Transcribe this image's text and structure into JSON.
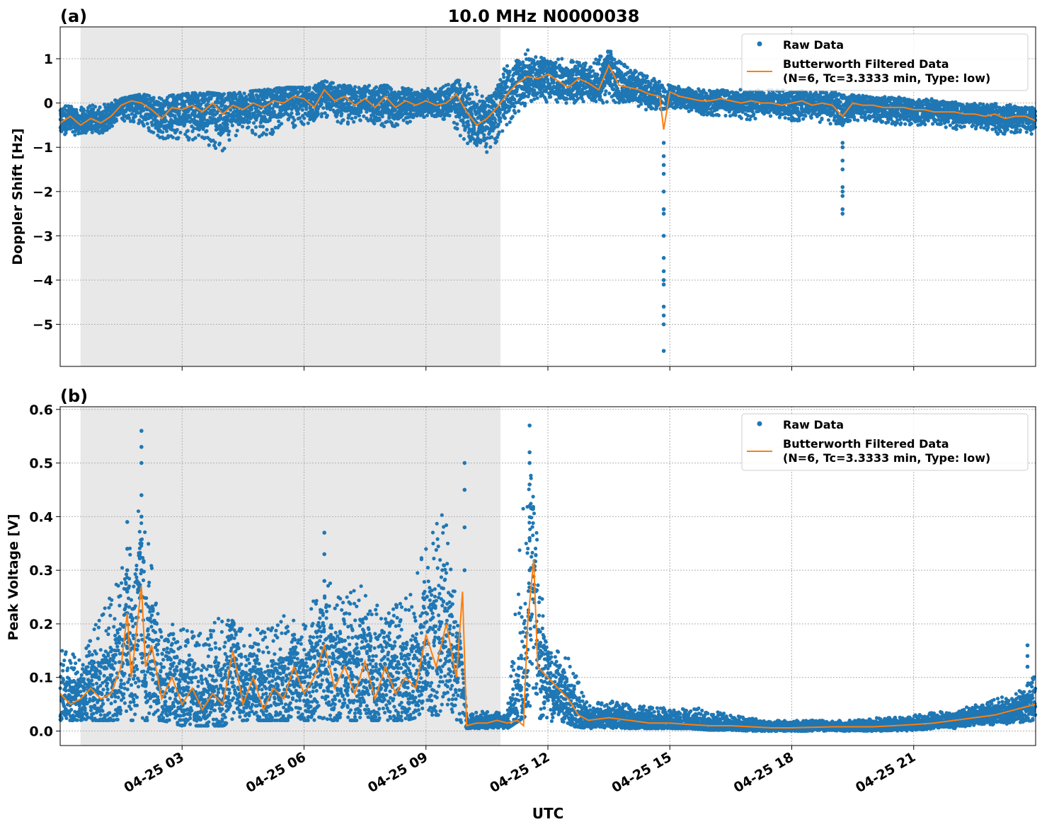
{
  "figure": {
    "title": "10.0 MHz N0000038",
    "xlabel": "UTC",
    "shade_interval": [
      "00:30",
      "10:50"
    ],
    "x_ticks": [
      "04-25 03",
      "04-25 06",
      "04-25 09",
      "04-25 12",
      "04-25 15",
      "04-25 18",
      "04-25 21"
    ],
    "x_tick_hours": [
      3,
      6,
      9,
      12,
      15,
      18,
      21
    ],
    "x_range_hours": [
      0,
      24
    ],
    "colors": {
      "raw": "#1f77b4",
      "filtered": "#ff7f0e",
      "shade": "#e8e8e8",
      "grid": "#b0b0b0"
    }
  },
  "chart_data": [
    {
      "type": "line",
      "panel_label": "(a)",
      "title": "10.0 MHz N0000038",
      "xlabel": "",
      "ylabel": "Doppler Shift [Hz]",
      "ylim": [
        -5.95,
        1.72
      ],
      "y_ticks": [
        1,
        0,
        -1,
        -2,
        -3,
        -4,
        -5
      ],
      "y_tick_labels": [
        "1",
        "0",
        "−1",
        "−2",
        "−3",
        "−4",
        "−5"
      ],
      "grid": true,
      "legend_position": "top-right",
      "series": [
        {
          "name": "Raw Data",
          "style": "scatter",
          "envelope": {
            "x_hours": [
              0.0,
              0.5,
              1.0,
              1.5,
              2.0,
              2.5,
              3.0,
              3.5,
              4.0,
              4.5,
              5.0,
              5.5,
              6.0,
              6.5,
              7.0,
              7.5,
              8.0,
              8.5,
              9.0,
              9.5,
              10.0,
              10.5,
              11.0,
              11.5,
              12.0,
              12.5,
              13.0,
              13.5,
              14.0,
              14.5,
              15.0,
              15.5,
              16.0,
              16.5,
              17.0,
              17.5,
              18.0,
              18.5,
              19.0,
              19.5,
              20.0,
              20.5,
              21.0,
              21.5,
              22.0,
              22.5,
              23.0,
              23.5,
              24.0
            ],
            "high": [
              0.0,
              -0.1,
              0.0,
              0.1,
              0.2,
              0.15,
              0.2,
              0.25,
              0.2,
              0.25,
              0.3,
              0.35,
              0.35,
              0.5,
              0.4,
              0.4,
              0.4,
              0.35,
              0.35,
              0.4,
              0.6,
              0.1,
              0.9,
              1.2,
              1.0,
              1.0,
              0.9,
              1.2,
              0.8,
              0.6,
              0.4,
              0.35,
              0.3,
              0.3,
              0.3,
              0.3,
              0.3,
              0.25,
              0.25,
              0.2,
              0.15,
              0.15,
              0.1,
              0.1,
              0.05,
              0.0,
              0.0,
              -0.05,
              -0.1
            ],
            "low": [
              -0.8,
              -0.7,
              -0.7,
              -0.4,
              -0.5,
              -0.9,
              -0.8,
              -0.9,
              -1.1,
              -0.6,
              -0.8,
              -0.6,
              -0.6,
              -0.3,
              -0.5,
              -0.4,
              -0.6,
              -0.5,
              -0.3,
              -0.4,
              -0.9,
              -1.2,
              -0.5,
              0.0,
              0.0,
              0.0,
              0.0,
              0.0,
              0.0,
              -0.2,
              -0.1,
              -0.2,
              -0.3,
              -0.3,
              -0.4,
              -0.3,
              -0.4,
              -0.4,
              -0.5,
              -0.4,
              -0.4,
              -0.5,
              -0.5,
              -0.5,
              -0.6,
              -0.6,
              -0.7,
              -0.7,
              -0.7
            ]
          },
          "outlier_spikes": [
            {
              "x_hour": 14.85,
              "values": [
                -0.9,
                -1.2,
                -1.4,
                -1.6,
                -2.0,
                -2.4,
                -2.5,
                -3.0,
                -3.5,
                -3.8,
                -4.0,
                -4.1,
                -4.6,
                -4.8,
                -5.0,
                -5.6
              ]
            },
            {
              "x_hour": 19.25,
              "values": [
                -0.5,
                -0.9,
                -1.0,
                -1.3,
                -1.5,
                -1.9,
                -2.0,
                -2.1,
                -2.4,
                -2.5
              ]
            }
          ]
        },
        {
          "name": "Butterworth Filtered Data\n(N=6, Tc=3.3333 min, Type: low)",
          "style": "line",
          "x_hours": [
            0.0,
            0.25,
            0.5,
            0.75,
            1.0,
            1.25,
            1.5,
            1.75,
            2.0,
            2.25,
            2.5,
            2.75,
            3.0,
            3.25,
            3.5,
            3.75,
            4.0,
            4.25,
            4.5,
            4.75,
            5.0,
            5.25,
            5.5,
            5.75,
            6.0,
            6.25,
            6.5,
            6.75,
            7.0,
            7.25,
            7.5,
            7.75,
            8.0,
            8.25,
            8.5,
            8.75,
            9.0,
            9.25,
            9.5,
            9.75,
            10.0,
            10.25,
            10.5,
            10.75,
            11.0,
            11.25,
            11.5,
            11.75,
            12.0,
            12.25,
            12.5,
            12.75,
            13.0,
            13.25,
            13.5,
            13.75,
            14.0,
            14.25,
            14.5,
            14.75,
            14.85,
            15.0,
            15.25,
            15.5,
            15.75,
            16.0,
            16.25,
            16.5,
            16.75,
            17.0,
            17.25,
            17.5,
            17.75,
            18.0,
            18.25,
            18.5,
            18.75,
            19.0,
            19.25,
            19.5,
            19.75,
            20.0,
            20.25,
            20.5,
            20.75,
            21.0,
            21.25,
            21.5,
            21.75,
            22.0,
            22.25,
            22.5,
            22.75,
            23.0,
            23.25,
            23.5,
            23.75,
            24.0
          ],
          "values": [
            -0.45,
            -0.3,
            -0.5,
            -0.35,
            -0.45,
            -0.3,
            -0.05,
            0.05,
            0.0,
            -0.15,
            -0.35,
            -0.1,
            -0.15,
            -0.05,
            -0.2,
            0.0,
            -0.25,
            -0.05,
            -0.15,
            0.0,
            -0.1,
            0.05,
            0.0,
            0.15,
            0.1,
            -0.1,
            0.3,
            0.05,
            0.15,
            -0.05,
            0.1,
            -0.1,
            0.15,
            -0.1,
            0.05,
            -0.05,
            0.05,
            -0.05,
            0.0,
            0.2,
            -0.2,
            -0.5,
            -0.35,
            -0.1,
            0.2,
            0.45,
            0.6,
            0.55,
            0.65,
            0.5,
            0.35,
            0.55,
            0.45,
            0.3,
            0.85,
            0.4,
            0.35,
            0.3,
            0.2,
            0.15,
            -0.6,
            0.25,
            0.15,
            0.1,
            0.05,
            0.05,
            0.1,
            0.05,
            0.0,
            0.05,
            0.0,
            0.0,
            -0.05,
            0.0,
            0.05,
            -0.05,
            0.0,
            -0.05,
            -0.3,
            0.0,
            -0.05,
            -0.05,
            -0.1,
            -0.1,
            -0.1,
            -0.15,
            -0.15,
            -0.2,
            -0.2,
            -0.2,
            -0.25,
            -0.25,
            -0.3,
            -0.25,
            -0.35,
            -0.3,
            -0.3,
            -0.4
          ]
        }
      ]
    },
    {
      "type": "line",
      "panel_label": "(b)",
      "title": "",
      "xlabel": "UTC",
      "ylabel": "Peak Voltage [V]",
      "ylim": [
        -0.027,
        0.605
      ],
      "y_ticks": [
        0.6,
        0.5,
        0.4,
        0.3,
        0.2,
        0.1,
        0.0
      ],
      "y_tick_labels": [
        "0.6",
        "0.5",
        "0.4",
        "0.3",
        "0.2",
        "0.1",
        "0.0"
      ],
      "grid": true,
      "legend_position": "top-right",
      "series": [
        {
          "name": "Raw Data",
          "style": "scatter",
          "envelope": {
            "x_hours": [
              0.0,
              0.5,
              1.0,
              1.5,
              2.0,
              2.5,
              3.0,
              3.5,
              4.0,
              4.5,
              5.0,
              5.5,
              6.0,
              6.5,
              7.0,
              7.5,
              8.0,
              8.5,
              9.0,
              9.5,
              10.0,
              10.5,
              11.0,
              11.5,
              12.0,
              12.5,
              13.0,
              13.5,
              14.0,
              14.5,
              15.0,
              15.5,
              16.0,
              16.5,
              17.0,
              17.5,
              18.0,
              18.5,
              19.0,
              19.5,
              20.0,
              20.5,
              21.0,
              21.5,
              22.0,
              22.5,
              23.0,
              23.5,
              24.0
            ],
            "high": [
              0.16,
              0.14,
              0.22,
              0.3,
              0.45,
              0.2,
              0.2,
              0.18,
              0.22,
              0.19,
              0.2,
              0.22,
              0.2,
              0.3,
              0.25,
              0.28,
              0.22,
              0.25,
              0.35,
              0.45,
              0.03,
              0.04,
              0.03,
              0.55,
              0.16,
              0.14,
              0.05,
              0.06,
              0.05,
              0.045,
              0.045,
              0.045,
              0.04,
              0.03,
              0.025,
              0.02,
              0.02,
              0.02,
              0.02,
              0.02,
              0.025,
              0.025,
              0.03,
              0.035,
              0.04,
              0.05,
              0.06,
              0.07,
              0.11
            ],
            "low": [
              0.02,
              0.02,
              0.02,
              0.02,
              0.02,
              0.02,
              0.01,
              0.01,
              0.01,
              0.02,
              0.02,
              0.02,
              0.02,
              0.02,
              0.02,
              0.02,
              0.02,
              0.02,
              0.03,
              0.03,
              0.005,
              0.005,
              0.005,
              0.03,
              0.02,
              0.01,
              0.005,
              0.005,
              0.005,
              0.005,
              0.005,
              0.005,
              0.002,
              0.002,
              0.0,
              0.0,
              0.0,
              0.0,
              0.0,
              0.0,
              0.0,
              0.0,
              0.0,
              0.005,
              0.005,
              0.01,
              0.01,
              0.015,
              0.02
            ]
          },
          "outlier_spikes": [
            {
              "x_hour": 1.65,
              "values": [
                0.22,
                0.26,
                0.3,
                0.34,
                0.39
              ]
            },
            {
              "x_hour": 2.0,
              "values": [
                0.3,
                0.35,
                0.4,
                0.44,
                0.5,
                0.53,
                0.56
              ]
            },
            {
              "x_hour": 6.5,
              "values": [
                0.28,
                0.33,
                0.37
              ]
            },
            {
              "x_hour": 9.95,
              "values": [
                0.3,
                0.38,
                0.45,
                0.5
              ]
            },
            {
              "x_hour": 11.55,
              "values": [
                0.3,
                0.36,
                0.42,
                0.46,
                0.5,
                0.52,
                0.57
              ]
            },
            {
              "x_hour": 23.8,
              "values": [
                0.12,
                0.14,
                0.16
              ]
            }
          ]
        },
        {
          "name": "Butterworth Filtered Data\n(N=6, Tc=3.3333 min, Type: low)",
          "style": "line",
          "x_hours": [
            0.0,
            0.25,
            0.5,
            0.75,
            1.0,
            1.25,
            1.5,
            1.65,
            1.75,
            2.0,
            2.1,
            2.25,
            2.5,
            2.75,
            3.0,
            3.25,
            3.5,
            3.75,
            4.0,
            4.25,
            4.5,
            4.75,
            5.0,
            5.25,
            5.5,
            5.75,
            6.0,
            6.25,
            6.5,
            6.75,
            7.0,
            7.25,
            7.5,
            7.75,
            8.0,
            8.25,
            8.5,
            8.75,
            9.0,
            9.25,
            9.5,
            9.75,
            9.9,
            10.0,
            10.25,
            10.5,
            10.75,
            11.0,
            11.25,
            11.4,
            11.5,
            11.65,
            11.75,
            12.0,
            12.25,
            12.5,
            12.75,
            13.0,
            13.5,
            14.0,
            14.5,
            15.0,
            15.5,
            16.0,
            16.5,
            17.0,
            17.5,
            18.0,
            18.5,
            19.0,
            19.5,
            20.0,
            20.5,
            21.0,
            21.5,
            22.0,
            22.5,
            23.0,
            23.5,
            24.0
          ],
          "values": [
            0.07,
            0.05,
            0.06,
            0.08,
            0.06,
            0.07,
            0.12,
            0.22,
            0.1,
            0.27,
            0.12,
            0.16,
            0.06,
            0.1,
            0.05,
            0.08,
            0.04,
            0.07,
            0.05,
            0.15,
            0.05,
            0.1,
            0.04,
            0.08,
            0.06,
            0.12,
            0.07,
            0.1,
            0.16,
            0.08,
            0.12,
            0.07,
            0.13,
            0.06,
            0.12,
            0.07,
            0.1,
            0.08,
            0.18,
            0.12,
            0.2,
            0.1,
            0.26,
            0.01,
            0.015,
            0.015,
            0.02,
            0.015,
            0.02,
            0.01,
            0.2,
            0.32,
            0.12,
            0.1,
            0.08,
            0.06,
            0.03,
            0.02,
            0.025,
            0.02,
            0.015,
            0.015,
            0.012,
            0.01,
            0.01,
            0.008,
            0.006,
            0.006,
            0.007,
            0.008,
            0.008,
            0.008,
            0.01,
            0.012,
            0.015,
            0.02,
            0.025,
            0.03,
            0.04,
            0.05
          ]
        }
      ]
    }
  ]
}
